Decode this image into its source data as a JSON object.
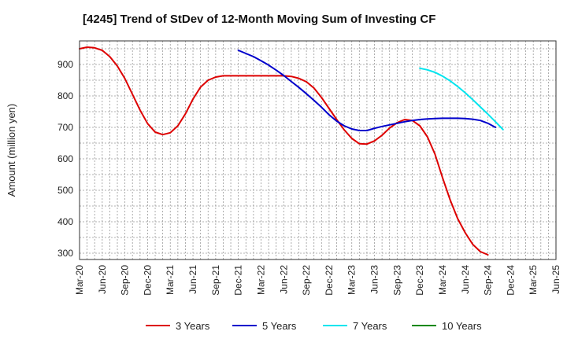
{
  "chart_data": {
    "type": "line",
    "title": "[4245]  Trend of StDev of 12-Month Moving Sum of Investing CF",
    "ylabel": "Amount (million yen)",
    "xlabel": "",
    "ylim": [
      280,
      975
    ],
    "yticks": [
      300,
      400,
      500,
      600,
      700,
      800,
      900
    ],
    "x_ticks": [
      "Mar-20",
      "Jun-20",
      "Sep-20",
      "Dec-20",
      "Mar-21",
      "Jun-21",
      "Sep-21",
      "Dec-21",
      "Mar-22",
      "Jun-22",
      "Sep-22",
      "Dec-22",
      "Mar-23",
      "Jun-23",
      "Sep-23",
      "Dec-23",
      "Mar-24",
      "Jun-24",
      "Sep-24",
      "Dec-24",
      "Mar-25",
      "Jun-25"
    ],
    "grid": true,
    "legend_position": "bottom",
    "series": [
      {
        "name": "3 Years",
        "color": "#dd0000",
        "start_index": 0,
        "values": [
          950,
          955,
          953,
          945,
          925,
          895,
          855,
          805,
          755,
          712,
          685,
          677,
          683,
          705,
          743,
          790,
          828,
          850,
          860,
          864,
          864,
          864,
          864,
          864,
          864,
          864,
          864,
          864,
          862,
          856,
          845,
          825,
          795,
          760,
          725,
          692,
          665,
          648,
          647,
          657,
          675,
          698,
          715,
          725,
          722,
          705,
          670,
          615,
          540,
          470,
          410,
          365,
          328,
          305,
          295
        ]
      },
      {
        "name": "5 Years",
        "color": "#0000cc",
        "start_index": 21,
        "values": [
          945,
          935,
          925,
          912,
          898,
          882,
          865,
          846,
          827,
          807,
          786,
          764,
          740,
          720,
          705,
          695,
          690,
          690,
          697,
          703,
          708,
          713,
          718,
          722,
          725,
          727,
          728,
          729,
          729,
          729,
          728,
          726,
          722,
          713,
          700
        ]
      },
      {
        "name": "7 Years",
        "color": "#00e5ee",
        "start_index": 45,
        "values": [
          888,
          883,
          875,
          863,
          848,
          830,
          810,
          788,
          765,
          742,
          718,
          693
        ]
      },
      {
        "name": "10 Years",
        "color": "#008800",
        "start_index": 0,
        "values": []
      }
    ]
  }
}
